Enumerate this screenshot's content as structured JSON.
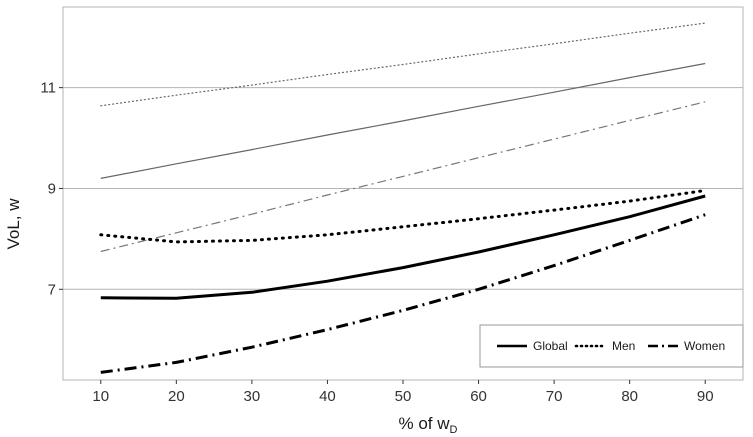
{
  "chart_data": {
    "type": "line",
    "xlabel_main": "% of w",
    "xlabel_sub": "D",
    "ylabel": "VoL, w",
    "x": [
      10,
      20,
      30,
      40,
      50,
      60,
      70,
      80,
      90
    ],
    "xlim": [
      5,
      95
    ],
    "ylim": [
      5.2,
      12.6
    ],
    "yticks": [
      7,
      9,
      11
    ],
    "grid": "horizontal",
    "legend_position": "bottom-right",
    "legend": [
      {
        "label": "Global",
        "style": "solid"
      },
      {
        "label": "Men",
        "style": "dotted"
      },
      {
        "label": "Women",
        "style": "dashdot"
      }
    ],
    "series": [
      {
        "name": "Global",
        "group": "Global",
        "style": "solid",
        "weight": "thin",
        "color": "#666666",
        "values": [
          9.2,
          9.49,
          9.77,
          10.06,
          10.34,
          10.63,
          10.91,
          11.2,
          11.48
        ]
      },
      {
        "name": "Men",
        "group": "Men",
        "style": "dotted",
        "weight": "thin",
        "color": "#666666",
        "values": [
          10.64,
          10.85,
          11.05,
          11.26,
          11.46,
          11.67,
          11.87,
          12.08,
          12.28
        ]
      },
      {
        "name": "Women",
        "group": "Women",
        "style": "dashdot",
        "weight": "thin",
        "color": "#777777",
        "values": [
          7.75,
          8.12,
          8.49,
          8.87,
          9.24,
          9.61,
          9.98,
          10.35,
          10.72
        ]
      },
      {
        "name": "Global",
        "group": "Global",
        "style": "solid",
        "weight": "thick",
        "color": "#000000",
        "values": [
          6.83,
          6.82,
          6.94,
          7.16,
          7.43,
          7.74,
          8.08,
          8.44,
          8.85
        ]
      },
      {
        "name": "Men",
        "group": "Men",
        "style": "dotted",
        "weight": "thick",
        "color": "#000000",
        "values": [
          8.08,
          7.94,
          7.97,
          8.08,
          8.24,
          8.4,
          8.57,
          8.75,
          8.96
        ]
      },
      {
        "name": "Women",
        "group": "Women",
        "style": "dashdot",
        "weight": "thick",
        "color": "#000000",
        "values": [
          5.35,
          5.55,
          5.85,
          6.2,
          6.58,
          7.0,
          7.47,
          7.97,
          8.48
        ]
      }
    ]
  }
}
